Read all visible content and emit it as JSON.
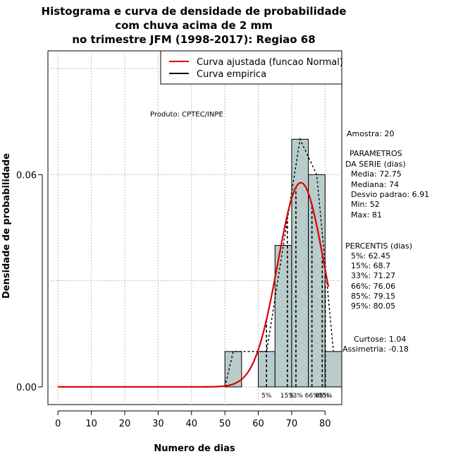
{
  "chart_data": {
    "type": "histogram",
    "title_lines": [
      "Histograma e curva de densidade de probabilidade",
      "com chuva acima de 2 mm",
      "no trimestre JFM (1998-2017): Regiao 68"
    ],
    "xlabel": "Numero de dias",
    "ylabel": "Densidade de probabilidade",
    "xlim": [
      -3,
      85
    ],
    "ylim": [
      -0.005,
      0.095
    ],
    "x_ticks": [
      "0",
      "10",
      "20",
      "30",
      "40",
      "50",
      "60",
      "70",
      "80"
    ],
    "y_ticks": [
      "0.00",
      "0.06"
    ],
    "grid": true,
    "produto_label": "Produto: CPTEC/INPE",
    "bins": [
      {
        "from": 50,
        "to": 55,
        "density": 0.01
      },
      {
        "from": 60,
        "to": 65,
        "density": 0.01
      },
      {
        "from": 65,
        "to": 70,
        "density": 0.04
      },
      {
        "from": 70,
        "to": 75,
        "density": 0.07
      },
      {
        "from": 75,
        "to": 80,
        "density": 0.06
      },
      {
        "from": 80,
        "to": 85,
        "density": 0.01
      }
    ],
    "normal_curve": {
      "name": "Curva ajustada (funcao Normal)",
      "color": "#dd0000",
      "mean": 72.75,
      "sd": 6.91
    },
    "empirical_curve": {
      "name": "Curva empirica",
      "color": "#000000"
    },
    "bar_fill": "#b8cccc",
    "percentile_lines": [
      {
        "label": "5%",
        "x": 62.45
      },
      {
        "label": "15%",
        "x": 68.7
      },
      {
        "label": "33%",
        "x": 71.27
      },
      {
        "label": "66%",
        "x": 76.06
      },
      {
        "label": "85%",
        "x": 79.15
      },
      {
        "label": "95%",
        "x": 80.05
      }
    ],
    "stats_panel": {
      "amostra": "Amostra: 20",
      "params_heading_1": "PARAMETROS",
      "params_heading_2": "DA SERIE (dias)",
      "media": "Media: 72.75",
      "mediana": "Mediana: 74",
      "desvio": "Desvio padrao: 6.91",
      "min": "Min: 52",
      "max": "Max: 81",
      "percentis_heading": "PERCENTIS (dias)",
      "p5": "5%: 62.45",
      "p15": "15%: 68.7",
      "p33": "33%: 71.27",
      "p66": "66%: 76.06",
      "p85": "85%: 79.15",
      "p95": "95%: 80.05",
      "curtose": "Curtose: 1.04",
      "assimetria": "Assimetria: -0.18"
    }
  }
}
